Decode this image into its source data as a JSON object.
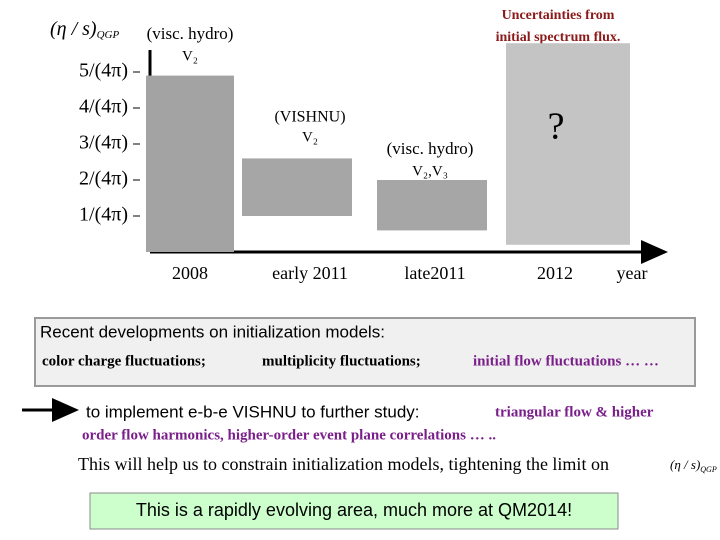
{
  "chart_data": {
    "type": "bar",
    "categories": [
      "2008",
      "early 2011",
      "late2011",
      "2012"
    ],
    "low": [
      0,
      1,
      0.6,
      0.2
    ],
    "high": [
      4.9,
      2.6,
      2,
      5.8
    ],
    "colors": [
      "#a3a3a3",
      "#a6a6a6",
      "#a6a6a6",
      "#c4c4c4"
    ],
    "ylim": [
      0,
      6
    ],
    "yticks": [
      {
        "value": 1,
        "label": "1/(4π)"
      },
      {
        "value": 2,
        "label": "2/(4π)"
      },
      {
        "value": 3,
        "label": "3/(4π)"
      },
      {
        "value": 4,
        "label": "4/(4π)"
      },
      {
        "value": 5,
        "label": "5/(4π)"
      }
    ],
    "y_label": "(η / s)",
    "y_label_sub": "QGP",
    "x_label": "year",
    "annotations": [
      "(visc. hydro)",
      "V₂",
      "(VISHNU)",
      "V₂",
      "(visc. hydro)",
      "V₂,V₃",
      "?",
      "Uncertainties from",
      "initial spectrum flux."
    ]
  },
  "box": {
    "title": "Recent developments on initialization models:",
    "items": [
      "color charge fluctuations;",
      "multiplicity fluctuations;",
      "initial flow fluctuations … …"
    ]
  },
  "plan": {
    "text": "to implement e-b-e VISHNU to further study:",
    "highlight": [
      "triangular flow & higher",
      "order flow harmonics,  higher-order event plane  correlations … .."
    ]
  },
  "conclusion": {
    "text": "This will help us to constrain initialization models, tightening the limit on",
    "symbol": "(η / s)",
    "symbol_sub": "QGP"
  },
  "footer": "This is a rapidly evolving area, much more at QM2014!"
}
